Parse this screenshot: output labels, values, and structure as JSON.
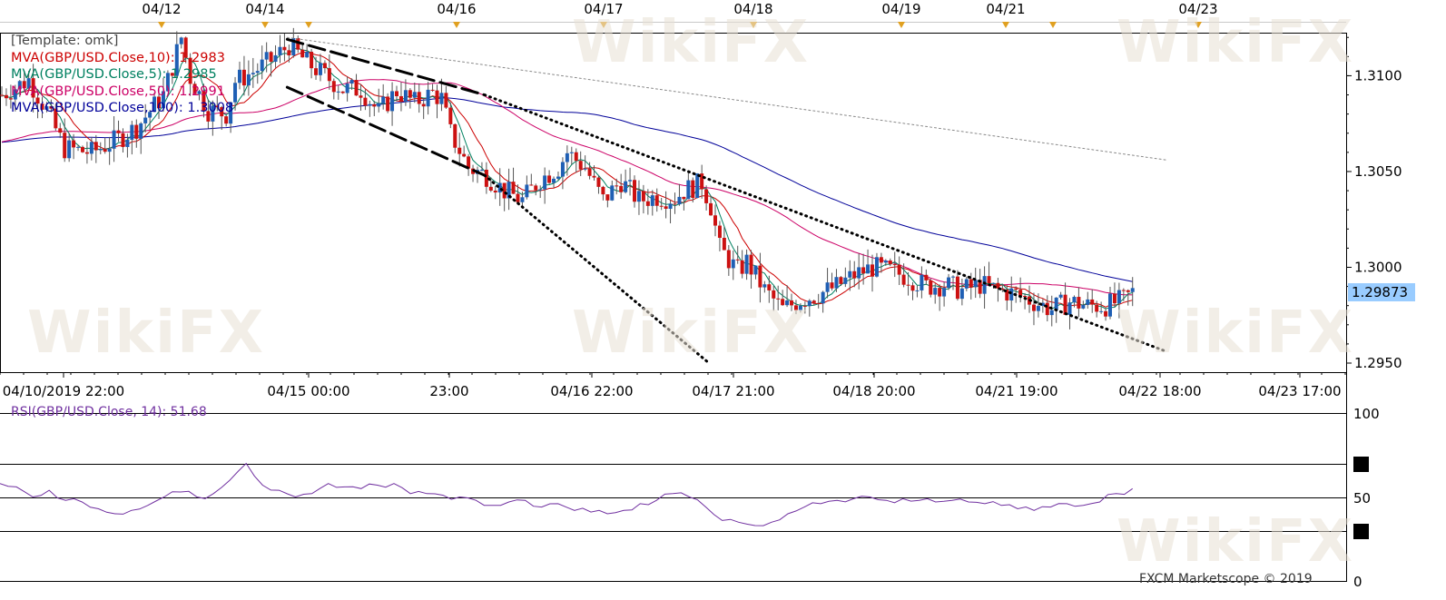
{
  "chart_data": {
    "type": "candlestick",
    "symbol": "GBP/USD",
    "template": "[Template: omk]",
    "top_dates": [
      "04/12",
      "04/14",
      "04/16",
      "04/17",
      "04/18",
      "04/19",
      "04/21",
      "04/23"
    ],
    "x_tick_labels": [
      "04/10/2019 22:00",
      "04/15 00:00",
      "23:00",
      "04/16 22:00",
      "04/17 21:00",
      "04/18 20:00",
      "04/21 19:00",
      "04/22 18:00",
      "04/23 17:00"
    ],
    "y_tick_labels": [
      "1.3100",
      "1.3050",
      "1.3000",
      "1.2950"
    ],
    "ylim": [
      1.295,
      1.3122
    ],
    "current_price": "1.29873",
    "indicators": [
      {
        "label": "MVA(GBP/USD.Close,10): 1.2983",
        "color": "#cc0000"
      },
      {
        "label": "MVA(GBP/USD.Close,5): 1.2985",
        "color": "#008060"
      },
      {
        "label": "MVA(GBP/USD.Close,50): 1.2991",
        "color": "#cc0066"
      },
      {
        "label": "MVA(GBP/USD.Close,100): 1.3008",
        "color": "#000099"
      }
    ],
    "price_path": [
      [
        0,
        1.309
      ],
      [
        6,
        1.3098
      ],
      [
        10,
        1.3082
      ],
      [
        14,
        1.3062
      ],
      [
        20,
        1.306
      ],
      [
        26,
        1.3067
      ],
      [
        30,
        1.3073
      ],
      [
        36,
        1.309
      ],
      [
        40,
        1.312
      ],
      [
        42,
        1.3099
      ],
      [
        46,
        1.3082
      ],
      [
        50,
        1.308
      ],
      [
        52,
        1.3097
      ],
      [
        56,
        1.3102
      ],
      [
        60,
        1.3108
      ],
      [
        64,
        1.3116
      ],
      [
        68,
        1.3107
      ],
      [
        72,
        1.31
      ],
      [
        76,
        1.3093
      ],
      [
        80,
        1.3093
      ],
      [
        84,
        1.3081
      ],
      [
        88,
        1.3092
      ],
      [
        92,
        1.3086
      ],
      [
        96,
        1.3091
      ],
      [
        98,
        1.3088
      ],
      [
        100,
        1.307
      ],
      [
        104,
        1.3052
      ],
      [
        108,
        1.3048
      ],
      [
        112,
        1.304
      ],
      [
        116,
        1.3035
      ],
      [
        120,
        1.3046
      ],
      [
        124,
        1.3052
      ],
      [
        126,
        1.306
      ],
      [
        130,
        1.3052
      ],
      [
        134,
        1.3035
      ],
      [
        138,
        1.3045
      ],
      [
        142,
        1.3035
      ],
      [
        146,
        1.3037
      ],
      [
        150,
        1.3036
      ],
      [
        152,
        1.304
      ],
      [
        156,
        1.3044
      ],
      [
        158,
        1.3032
      ],
      [
        160,
        1.301
      ],
      [
        164,
        1.2998
      ],
      [
        166,
        1.3003
      ],
      [
        170,
        1.2988
      ],
      [
        174,
        1.2978
      ],
      [
        178,
        1.2983
      ],
      [
        182,
        1.2986
      ],
      [
        186,
        1.299
      ],
      [
        190,
        1.2996
      ],
      [
        194,
        1.3
      ],
      [
        198,
        1.2998
      ],
      [
        202,
        1.2995
      ],
      [
        206,
        1.299
      ],
      [
        210,
        1.2991
      ],
      [
        214,
        1.2988
      ],
      [
        218,
        1.2991
      ],
      [
        222,
        1.2988
      ],
      [
        226,
        1.2986
      ],
      [
        230,
        1.2982
      ],
      [
        234,
        1.2978
      ],
      [
        238,
        1.2982
      ],
      [
        242,
        1.298
      ],
      [
        246,
        1.298
      ],
      [
        250,
        1.2983
      ],
      [
        252,
        1.2987
      ]
    ],
    "trendlines": [
      {
        "from": [
          64,
          1.3119
        ],
        "to": [
          108,
          1.309
        ],
        "style": "dashed"
      },
      {
        "from": [
          64,
          1.3094
        ],
        "to": [
          108,
          1.3048
        ],
        "style": "dashed"
      },
      {
        "from": [
          108,
          1.3048
        ],
        "to": [
          158,
          1.295
        ],
        "style": "dotted"
      },
      {
        "from": [
          108,
          1.309
        ],
        "to": [
          260,
          1.2956
        ],
        "style": "dotted"
      },
      {
        "from": [
          64,
          1.312
        ],
        "to": [
          260,
          1.3056
        ],
        "style": "thin-dotted"
      }
    ],
    "rsi": {
      "label": "RSI(GBP/USD.Close, 14): 51.68",
      "levels": [
        "100",
        "50",
        "0"
      ],
      "values": [
        58,
        56,
        50,
        54,
        48,
        47,
        43,
        40,
        42,
        45,
        50,
        53,
        50,
        52,
        60,
        70,
        57,
        54,
        50,
        52,
        58,
        56,
        55,
        57,
        58,
        52,
        52,
        51,
        50,
        48,
        45,
        47,
        48,
        44,
        46,
        42,
        41,
        40,
        42,
        46,
        48,
        52,
        50,
        44,
        36,
        35,
        33,
        35,
        40,
        44,
        46,
        48,
        49,
        50,
        48,
        49,
        48,
        47,
        48,
        47,
        46,
        45,
        43,
        42,
        44,
        46,
        45,
        47,
        52,
        55
      ]
    }
  },
  "credit": "FXCM Marketscope © 2019"
}
